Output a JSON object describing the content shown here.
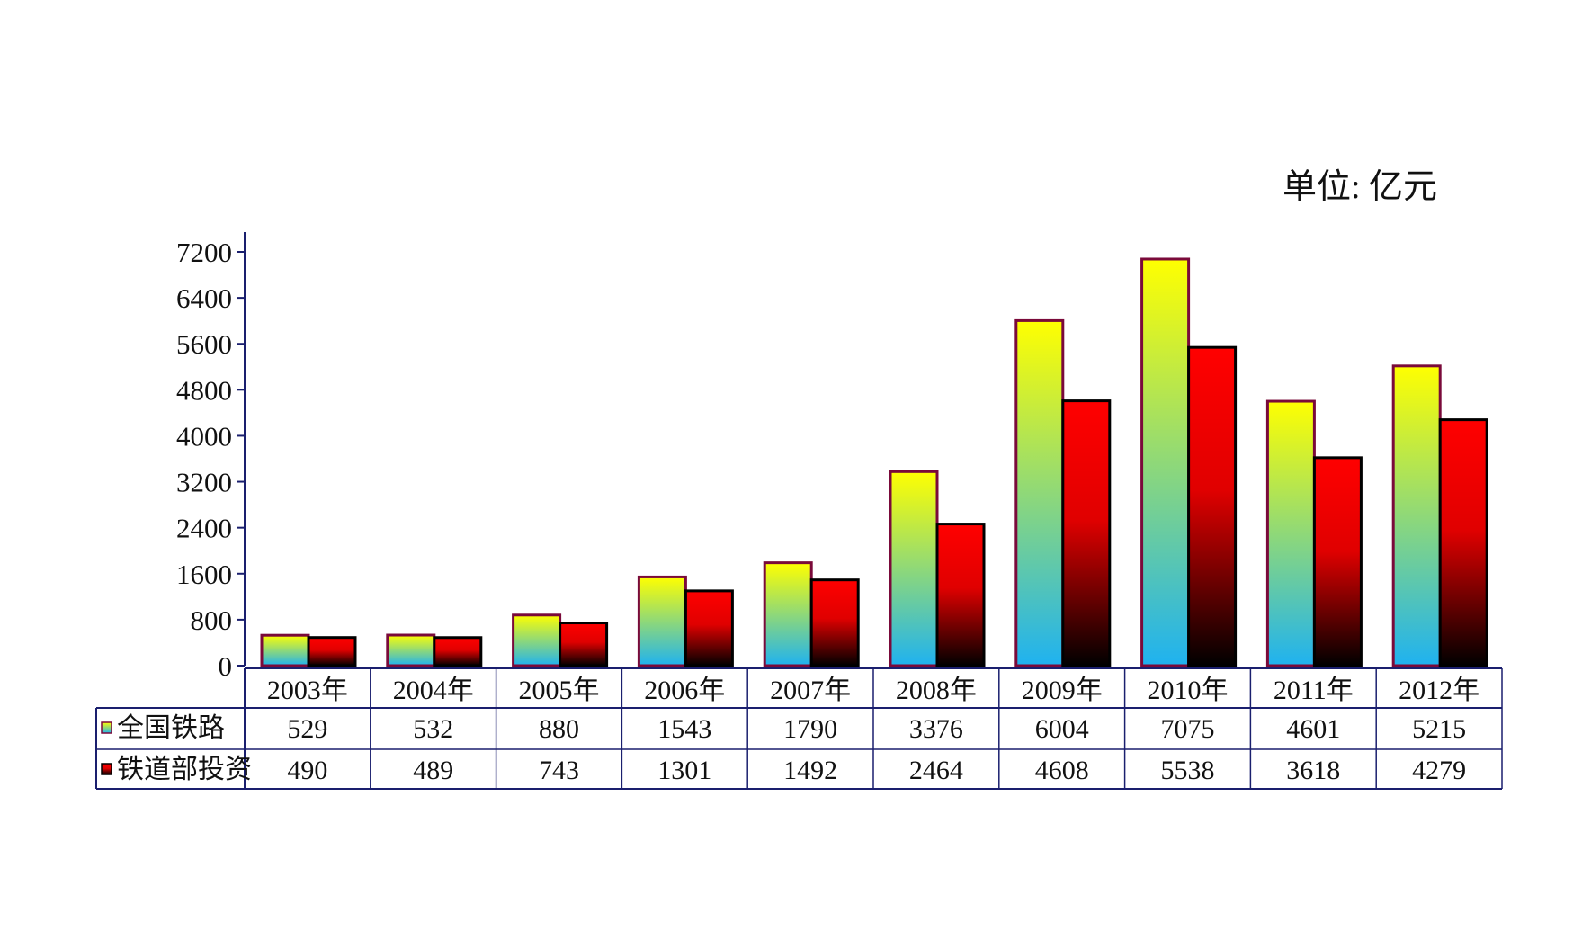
{
  "chart_data": {
    "type": "bar",
    "title": "",
    "unit_label": "单位: 亿元",
    "xlabel": "",
    "ylabel": "",
    "ylim": [
      0,
      7200
    ],
    "yticks": [
      0,
      800,
      1600,
      2400,
      3200,
      4000,
      4800,
      5600,
      6400,
      7200
    ],
    "yticks_text": [
      "0",
      "800",
      "1600",
      "2400",
      "3200",
      "4000",
      "4800",
      "5600",
      "6400",
      "7200"
    ],
    "grid": false,
    "legend": "in data table, left",
    "categories": [
      "2003年",
      "2004年",
      "2005年",
      "2006年",
      "2007年",
      "2008年",
      "2009年",
      "2010年",
      "2011年",
      "2012年"
    ],
    "series": [
      {
        "name": "全国铁路",
        "values": [
          529,
          532,
          880,
          1543,
          1790,
          3376,
          6004,
          7075,
          4601,
          5215
        ],
        "values_text": [
          "529",
          "532",
          "880",
          "1543",
          "1790",
          "3376",
          "6004",
          "7075",
          "4601",
          "5215"
        ],
        "colors": {
          "top": "#ffff00",
          "bottom": "#1fb2f0",
          "border": "#7a0a3a"
        }
      },
      {
        "name": "铁道部投资",
        "values": [
          490,
          489,
          743,
          1301,
          1492,
          2464,
          4608,
          5538,
          3618,
          4279
        ],
        "values_text": [
          "490",
          "489",
          "743",
          "1301",
          "1492",
          "2464",
          "4608",
          "5538",
          "3618",
          "4279"
        ],
        "colors": {
          "top": "#ff0000",
          "bottom": "#000000",
          "border": "#000000"
        }
      }
    ]
  }
}
